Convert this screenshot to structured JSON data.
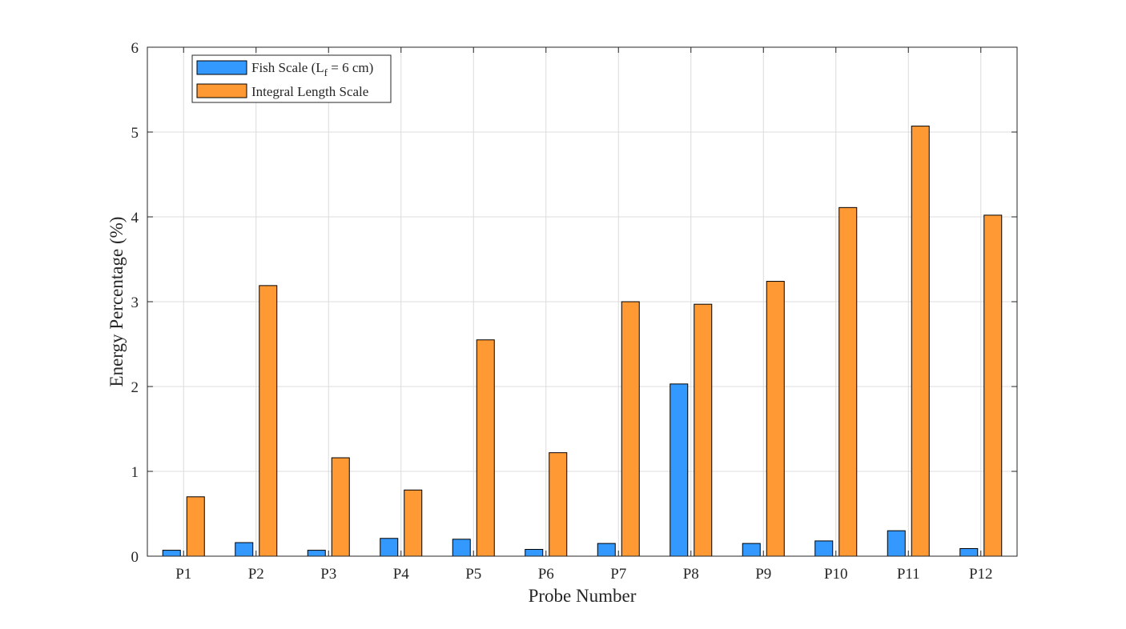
{
  "chart_data": {
    "type": "bar",
    "title": "",
    "xlabel": "Probe Number",
    "ylabel": "Energy Percentage (%)",
    "categories": [
      "P1",
      "P2",
      "P3",
      "P4",
      "P5",
      "P6",
      "P7",
      "P8",
      "P9",
      "P10",
      "P11",
      "P12"
    ],
    "ylim": [
      0,
      6
    ],
    "yticks": [
      0,
      1,
      2,
      3,
      4,
      5,
      6
    ],
    "grid": true,
    "legend_position": "top-left",
    "series": [
      {
        "name": "Fish Scale (L_f = 6 cm)",
        "legend_main": "Fish Scale (L",
        "legend_sub": "f",
        "legend_tail": " = 6 cm)",
        "color": "#3399ff",
        "values": [
          0.07,
          0.16,
          0.07,
          0.21,
          0.2,
          0.08,
          0.15,
          2.03,
          0.15,
          0.18,
          0.3,
          0.09
        ]
      },
      {
        "name": "Integral Length Scale",
        "color": "#ff9933",
        "values": [
          0.7,
          3.19,
          1.16,
          0.78,
          2.55,
          1.22,
          3.0,
          2.97,
          3.24,
          4.11,
          5.07,
          4.02
        ]
      }
    ]
  }
}
